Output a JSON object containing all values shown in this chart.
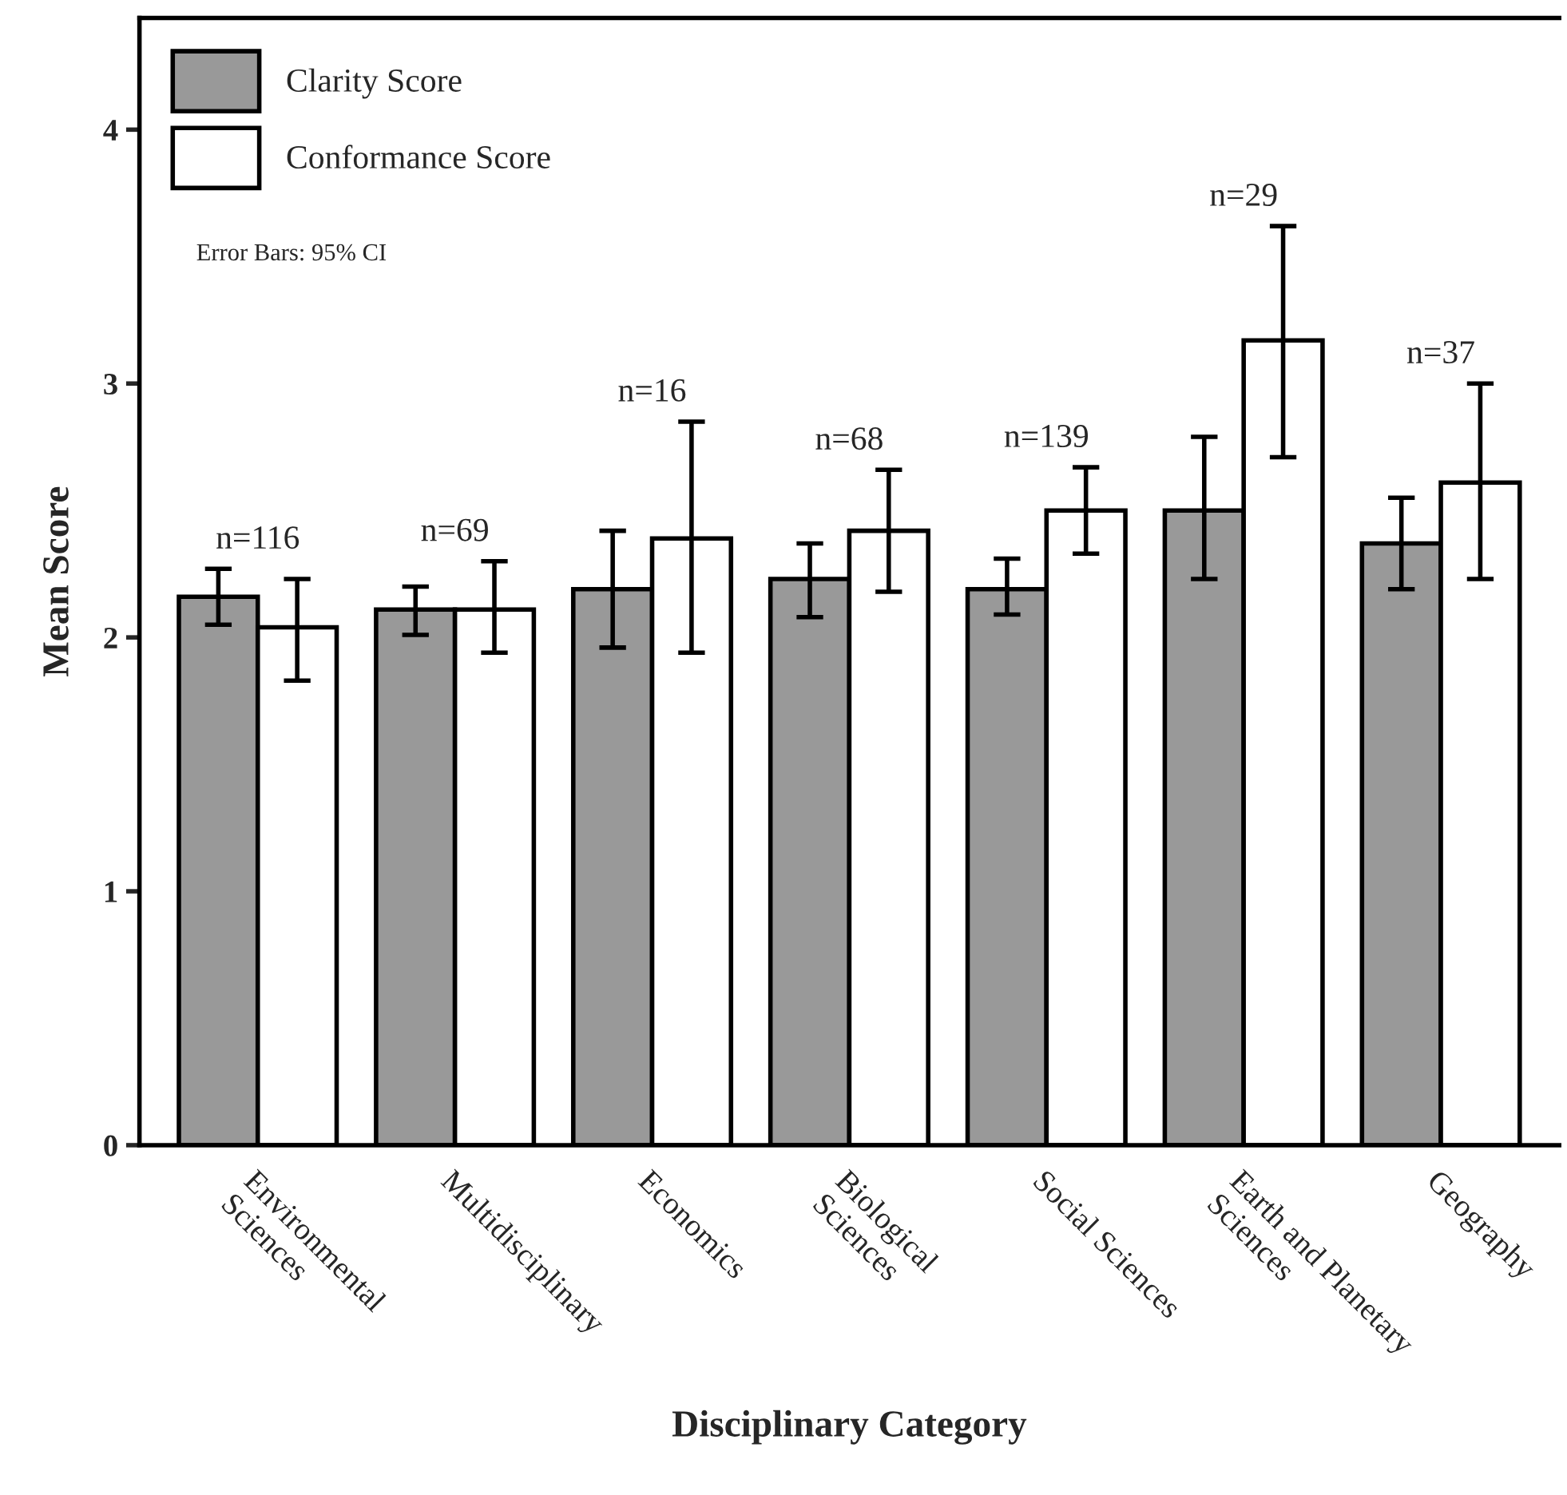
{
  "chart_data": {
    "type": "bar",
    "xlabel": "Disciplinary Category",
    "ylabel": "Mean Score",
    "categories": [
      "Environmental\nSciences",
      "Multidisciplinary",
      "Economics",
      "Biological\nSciences",
      "Social Sciences",
      "Earth and Planetary\nSciences",
      "Geography"
    ],
    "series": [
      {
        "name": "Clarity Score",
        "color": "#999999",
        "values": [
          2.16,
          2.11,
          2.19,
          2.23,
          2.19,
          2.5,
          2.37
        ],
        "errors": [
          [
            2.05,
            2.27
          ],
          [
            2.01,
            2.2
          ],
          [
            1.96,
            2.42
          ],
          [
            2.08,
            2.37
          ],
          [
            2.09,
            2.31
          ],
          [
            2.23,
            2.79
          ],
          [
            2.19,
            2.55
          ]
        ]
      },
      {
        "name": "Conformance Score",
        "color": "#ffffff",
        "values": [
          2.04,
          2.11,
          2.39,
          2.42,
          2.5,
          3.17,
          2.61
        ],
        "errors": [
          [
            1.83,
            2.23
          ],
          [
            1.94,
            2.3
          ],
          [
            1.94,
            2.85
          ],
          [
            2.18,
            2.66
          ],
          [
            2.33,
            2.67
          ],
          [
            2.71,
            3.62
          ],
          [
            2.23,
            3.0
          ]
        ]
      }
    ],
    "ylim": [
      0,
      4.44
    ],
    "yticks": [
      0,
      1,
      2,
      3,
      4
    ],
    "grid": false,
    "legend": "top left",
    "annotations": [
      "n=116",
      "n=69",
      "n=16",
      "n=68",
      "n=139",
      "n=29",
      "n=37",
      "Error Bars: 95% CI"
    ]
  }
}
